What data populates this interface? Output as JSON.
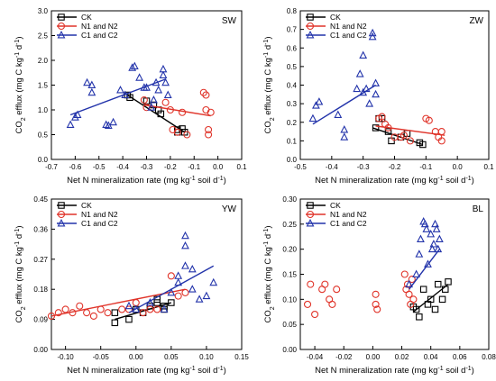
{
  "chart_data": [
    {
      "type": "scatter",
      "panel": "SW",
      "xlabel_parts": [
        "Net N mineralization rate (mg kg",
        "-1",
        " soil d",
        "-1",
        ")"
      ],
      "ylabel_parts": [
        "CO",
        "2",
        " efflux (mg C kg",
        "-1",
        " d",
        "-1",
        ")"
      ],
      "xlim": [
        -0.7,
        0.1
      ],
      "ylim": [
        0.0,
        3.0
      ],
      "xticks": [
        -0.7,
        -0.6,
        -0.5,
        -0.4,
        -0.3,
        -0.2,
        -0.1,
        0.0,
        0.1
      ],
      "xtick_labels": [
        "-0.7",
        "-0.6",
        "-0.5",
        "-0.4",
        "-0.3",
        "-0.2",
        "-0.1",
        "0.0",
        "0.1"
      ],
      "yticks": [
        0.0,
        0.5,
        1.0,
        1.5,
        2.0,
        2.5,
        3.0
      ],
      "ytick_labels": [
        "0.0",
        "0.5",
        "1.0",
        "1.5",
        "2.0",
        "2.5",
        "3.0"
      ],
      "legend": [
        "CK",
        "N1 and N2",
        "C1 and C2"
      ],
      "series": [
        {
          "name": "CK",
          "color": "#000000",
          "marker": "square",
          "points": [
            [
              -0.38,
              1.3
            ],
            [
              -0.37,
              1.25
            ],
            [
              -0.3,
              1.18
            ],
            [
              -0.27,
              1.1
            ],
            [
              -0.25,
              1.0
            ],
            [
              -0.24,
              0.92
            ],
            [
              -0.17,
              0.6
            ],
            [
              -0.17,
              0.55
            ],
            [
              -0.15,
              0.62
            ],
            [
              -0.14,
              0.55
            ]
          ],
          "fit": [
            [
              -0.39,
              1.33
            ],
            [
              -0.14,
              0.55
            ]
          ]
        },
        {
          "name": "N1 and N2",
          "color": "#e0342a",
          "marker": "circle",
          "points": [
            [
              -0.31,
              1.2
            ],
            [
              -0.3,
              1.05
            ],
            [
              -0.22,
              1.15
            ],
            [
              -0.2,
              1.0
            ],
            [
              -0.19,
              0.6
            ],
            [
              -0.17,
              0.55
            ],
            [
              -0.15,
              0.95
            ],
            [
              -0.13,
              0.5
            ],
            [
              -0.06,
              1.35
            ],
            [
              -0.05,
              1.3
            ],
            [
              -0.05,
              1.0
            ],
            [
              -0.04,
              0.6
            ],
            [
              -0.04,
              0.5
            ],
            [
              -0.03,
              0.95
            ]
          ],
          "fit": [
            [
              -0.31,
              1.1
            ],
            [
              -0.03,
              0.88
            ]
          ]
        },
        {
          "name": "C1 and C2",
          "color": "#2233aa",
          "marker": "triangle",
          "points": [
            [
              -0.62,
              0.7
            ],
            [
              -0.6,
              0.85
            ],
            [
              -0.59,
              0.9
            ],
            [
              -0.55,
              1.55
            ],
            [
              -0.53,
              1.5
            ],
            [
              -0.53,
              1.35
            ],
            [
              -0.47,
              0.7
            ],
            [
              -0.46,
              0.68
            ],
            [
              -0.44,
              0.75
            ],
            [
              -0.41,
              1.4
            ],
            [
              -0.39,
              1.3
            ],
            [
              -0.36,
              1.85
            ],
            [
              -0.35,
              1.88
            ],
            [
              -0.33,
              1.65
            ],
            [
              -0.31,
              1.45
            ],
            [
              -0.3,
              1.45
            ],
            [
              -0.28,
              1.05
            ],
            [
              -0.27,
              1.2
            ],
            [
              -0.26,
              1.55
            ],
            [
              -0.25,
              1.4
            ],
            [
              -0.23,
              1.82
            ],
            [
              -0.23,
              1.7
            ],
            [
              -0.22,
              1.55
            ],
            [
              -0.21,
              1.3
            ]
          ],
          "fit": [
            [
              -0.62,
              0.9
            ],
            [
              -0.22,
              1.62
            ]
          ]
        }
      ]
    },
    {
      "type": "scatter",
      "panel": "ZW",
      "xlabel_parts": [
        "Net N mineralization rate (mg kg",
        "-1",
        " soil d",
        "-1",
        ")"
      ],
      "ylabel_parts": [
        "CO",
        "2",
        " efflux (mg C kg",
        "-1",
        " d",
        "-1",
        ")"
      ],
      "xlim": [
        -0.5,
        0.1
      ],
      "ylim": [
        0.0,
        0.8
      ],
      "xticks": [
        -0.5,
        -0.4,
        -0.3,
        -0.2,
        -0.1,
        0.0,
        0.1
      ],
      "xtick_labels": [
        "-0.5",
        "-0.4",
        "-0.3",
        "-0.2",
        "-0.1",
        "0.0",
        "0.1"
      ],
      "yticks": [
        0.0,
        0.1,
        0.2,
        0.3,
        0.4,
        0.5,
        0.6,
        0.7,
        0.8
      ],
      "ytick_labels": [
        "0.0",
        "0.1",
        "0.2",
        "0.3",
        "0.4",
        "0.5",
        "0.6",
        "0.7",
        "0.8"
      ],
      "legend": [
        "CK",
        "N1 and N2",
        "C1 and C2"
      ],
      "series": [
        {
          "name": "CK",
          "color": "#000000",
          "marker": "square",
          "points": [
            [
              -0.26,
              0.17
            ],
            [
              -0.25,
              0.22
            ],
            [
              -0.24,
              0.22
            ],
            [
              -0.22,
              0.15
            ],
            [
              -0.21,
              0.1
            ],
            [
              -0.18,
              0.12
            ],
            [
              -0.16,
              0.14
            ],
            [
              -0.12,
              0.09
            ],
            [
              -0.11,
              0.08
            ]
          ],
          "fit": [
            [
              -0.27,
              0.17
            ],
            [
              -0.11,
              0.08
            ]
          ]
        },
        {
          "name": "N1 and N2",
          "color": "#e0342a",
          "marker": "circle",
          "points": [
            [
              -0.25,
              0.22
            ],
            [
              -0.24,
              0.23
            ],
            [
              -0.23,
              0.19
            ],
            [
              -0.22,
              0.17
            ],
            [
              -0.2,
              0.12
            ],
            [
              -0.18,
              0.12
            ],
            [
              -0.17,
              0.13
            ],
            [
              -0.15,
              0.1
            ],
            [
              -0.1,
              0.22
            ],
            [
              -0.09,
              0.21
            ],
            [
              -0.07,
              0.15
            ],
            [
              -0.06,
              0.12
            ],
            [
              -0.05,
              0.15
            ],
            [
              -0.05,
              0.1
            ]
          ],
          "fit": [
            [
              -0.26,
              0.18
            ],
            [
              -0.04,
              0.13
            ]
          ]
        },
        {
          "name": "C1 and C2",
          "color": "#2233aa",
          "marker": "triangle",
          "points": [
            [
              -0.46,
              0.22
            ],
            [
              -0.45,
              0.29
            ],
            [
              -0.44,
              0.31
            ],
            [
              -0.38,
              0.24
            ],
            [
              -0.36,
              0.16
            ],
            [
              -0.36,
              0.12
            ],
            [
              -0.32,
              0.38
            ],
            [
              -0.31,
              0.46
            ],
            [
              -0.3,
              0.36
            ],
            [
              -0.3,
              0.56
            ],
            [
              -0.29,
              0.38
            ],
            [
              -0.28,
              0.3
            ],
            [
              -0.27,
              0.68
            ],
            [
              -0.27,
              0.66
            ],
            [
              -0.26,
              0.41
            ],
            [
              -0.26,
              0.35
            ]
          ],
          "fit": [
            [
              -0.46,
              0.19
            ],
            [
              -0.26,
              0.4
            ]
          ]
        }
      ]
    },
    {
      "type": "scatter",
      "panel": "YW",
      "xlabel_parts": [
        "Net N mineralization rate (mg kg",
        "-1",
        " soil d",
        "-1",
        ")"
      ],
      "ylabel_parts": [
        "CO",
        "2",
        " efflux (mg C kg",
        "-1",
        " d",
        "-1",
        ")"
      ],
      "xlim": [
        -0.12,
        0.15
      ],
      "ylim": [
        0.0,
        0.45
      ],
      "xticks": [
        -0.1,
        -0.05,
        0.0,
        0.05,
        0.1,
        0.15
      ],
      "xtick_labels": [
        "-0.10",
        "-0.05",
        "0.00",
        "0.05",
        "0.10",
        "0.15"
      ],
      "yticks": [
        0.0,
        0.09,
        0.18,
        0.27,
        0.36,
        0.45
      ],
      "ytick_labels": [
        "0.00",
        "0.09",
        "0.18",
        "0.27",
        "0.36",
        "0.45"
      ],
      "legend": [
        "CK",
        "N1 and N2",
        "C1 and C2"
      ],
      "series": [
        {
          "name": "CK",
          "color": "#000000",
          "marker": "square",
          "points": [
            [
              -0.03,
              0.11
            ],
            [
              -0.03,
              0.08
            ],
            [
              -0.01,
              0.09
            ],
            [
              0.0,
              0.12
            ],
            [
              0.01,
              0.11
            ],
            [
              0.02,
              0.13
            ],
            [
              0.03,
              0.14
            ],
            [
              0.03,
              0.15
            ],
            [
              0.04,
              0.13
            ],
            [
              0.04,
              0.12
            ],
            [
              0.05,
              0.14
            ]
          ],
          "fit": [
            [
              -0.03,
              0.09
            ],
            [
              0.05,
              0.14
            ]
          ]
        },
        {
          "name": "N1 and N2",
          "color": "#e0342a",
          "marker": "circle",
          "points": [
            [
              -0.12,
              0.1
            ],
            [
              -0.11,
              0.11
            ],
            [
              -0.1,
              0.12
            ],
            [
              -0.09,
              0.11
            ],
            [
              -0.08,
              0.13
            ],
            [
              -0.07,
              0.11
            ],
            [
              -0.06,
              0.1
            ],
            [
              -0.05,
              0.12
            ],
            [
              -0.04,
              0.11
            ],
            [
              -0.02,
              0.12
            ],
            [
              -0.01,
              0.12
            ],
            [
              0.0,
              0.14
            ],
            [
              0.01,
              0.11
            ],
            [
              0.02,
              0.12
            ],
            [
              0.03,
              0.12
            ],
            [
              0.05,
              0.22
            ],
            [
              0.06,
              0.16
            ],
            [
              0.07,
              0.17
            ]
          ],
          "fit": [
            [
              -0.12,
              0.1
            ],
            [
              0.07,
              0.18
            ]
          ]
        },
        {
          "name": "C1 and C2",
          "color": "#2233aa",
          "marker": "triangle",
          "points": [
            [
              -0.01,
              0.13
            ],
            [
              0.0,
              0.12
            ],
            [
              0.02,
              0.14
            ],
            [
              0.04,
              0.12
            ],
            [
              0.05,
              0.17
            ],
            [
              0.06,
              0.22
            ],
            [
              0.06,
              0.2
            ],
            [
              0.07,
              0.25
            ],
            [
              0.07,
              0.31
            ],
            [
              0.07,
              0.34
            ],
            [
              0.08,
              0.24
            ],
            [
              0.08,
              0.18
            ],
            [
              0.09,
              0.15
            ],
            [
              0.1,
              0.16
            ],
            [
              0.11,
              0.2
            ]
          ],
          "fit": [
            [
              -0.01,
              0.11
            ],
            [
              0.11,
              0.25
            ]
          ]
        }
      ]
    },
    {
      "type": "scatter",
      "panel": "BL",
      "xlabel_parts": [
        "Net N mineralization rate (mg kg",
        "-1",
        " soil d",
        "-1",
        ")"
      ],
      "ylabel_parts": [
        "CO",
        "2",
        " efflux (mg C kg",
        "-1",
        " d",
        "-1",
        ")"
      ],
      "xlim": [
        -0.05,
        0.08
      ],
      "ylim": [
        0.0,
        0.3
      ],
      "xticks": [
        -0.04,
        -0.02,
        0.0,
        0.02,
        0.04,
        0.06,
        0.08
      ],
      "xtick_labels": [
        "-0.04",
        "-0.02",
        "0.00",
        "0.02",
        "0.04",
        "0.06",
        "0.08"
      ],
      "yticks": [
        0.0,
        0.05,
        0.1,
        0.15,
        0.2,
        0.25,
        0.3
      ],
      "ytick_labels": [
        "0.00",
        "0.05",
        "0.10",
        "0.15",
        "0.20",
        "0.25",
        "0.30"
      ],
      "legend": [
        "CK",
        "N1 and N2",
        "C1 and C2"
      ],
      "series": [
        {
          "name": "CK",
          "color": "#000000",
          "marker": "square",
          "points": [
            [
              0.028,
              0.085
            ],
            [
              0.03,
              0.08
            ],
            [
              0.032,
              0.065
            ],
            [
              0.035,
              0.12
            ],
            [
              0.038,
              0.09
            ],
            [
              0.04,
              0.1
            ],
            [
              0.043,
              0.08
            ],
            [
              0.045,
              0.13
            ],
            [
              0.048,
              0.1
            ],
            [
              0.05,
              0.12
            ],
            [
              0.052,
              0.135
            ]
          ],
          "fit": [
            [
              0.028,
              0.075
            ],
            [
              0.052,
              0.13
            ]
          ]
        },
        {
          "name": "N1 and N2",
          "color": "#e0342a",
          "marker": "circle",
          "points": [
            [
              -0.045,
              0.09
            ],
            [
              -0.043,
              0.13
            ],
            [
              -0.04,
              0.07
            ],
            [
              -0.035,
              0.12
            ],
            [
              -0.033,
              0.13
            ],
            [
              -0.03,
              0.1
            ],
            [
              -0.028,
              0.09
            ],
            [
              -0.025,
              0.12
            ],
            [
              0.002,
              0.11
            ],
            [
              0.002,
              0.09
            ],
            [
              0.003,
              0.08
            ],
            [
              0.022,
              0.15
            ],
            [
              0.023,
              0.12
            ],
            [
              0.024,
              0.13
            ],
            [
              0.025,
              0.11
            ],
            [
              0.026,
              0.09
            ],
            [
              0.027,
              0.14
            ],
            [
              0.028,
              0.1
            ]
          ],
          "fit": []
        },
        {
          "name": "C1 and C2",
          "color": "#2233aa",
          "marker": "triangle",
          "points": [
            [
              0.025,
              0.13
            ],
            [
              0.03,
              0.15
            ],
            [
              0.032,
              0.19
            ],
            [
              0.033,
              0.22
            ],
            [
              0.035,
              0.255
            ],
            [
              0.036,
              0.25
            ],
            [
              0.037,
              0.24
            ],
            [
              0.038,
              0.17
            ],
            [
              0.04,
              0.23
            ],
            [
              0.041,
              0.2
            ],
            [
              0.042,
              0.21
            ],
            [
              0.043,
              0.25
            ],
            [
              0.044,
              0.24
            ],
            [
              0.045,
              0.2
            ],
            [
              0.046,
              0.22
            ]
          ],
          "fit": [
            [
              0.025,
              0.12
            ],
            [
              0.046,
              0.2
            ]
          ]
        }
      ]
    }
  ]
}
